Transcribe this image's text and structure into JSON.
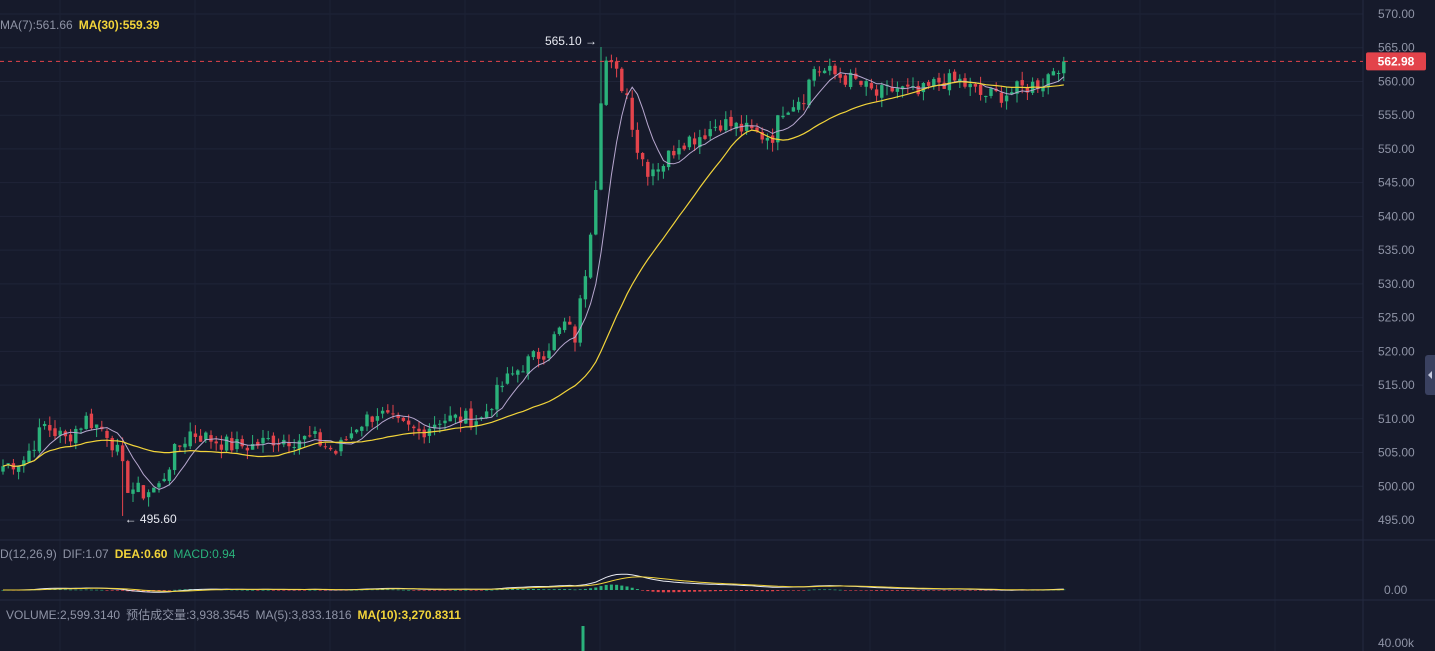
{
  "chart_data": {
    "type": "candlestick",
    "colors": {
      "up": "#2ab27b",
      "down": "#e3434b",
      "ma7": "#b7a7cf",
      "ma30": "#f2d43a",
      "background": "#161a2b"
    },
    "price_axis": {
      "ticks": [
        "570.00",
        "565.00",
        "560.00",
        "555.00",
        "550.00",
        "545.00",
        "540.00",
        "535.00",
        "530.00",
        "525.00",
        "520.00",
        "515.00",
        "510.00",
        "505.00",
        "500.00",
        "495.00"
      ],
      "range": [
        493.5,
        571
      ]
    },
    "current_price": "562.98",
    "high_label": "565.10",
    "low_label": "495.60",
    "high_value": 565.1,
    "low_value": 495.6,
    "ma7_label": "MA(7):561.66",
    "ma30_label": "MA(30):559.39",
    "anchors": [
      [
        0,
        503
      ],
      [
        4,
        504
      ],
      [
        8,
        509
      ],
      [
        12,
        507
      ],
      [
        16,
        510
      ],
      [
        20,
        508
      ],
      [
        22,
        505
      ],
      [
        24,
        500
      ],
      [
        27,
        499
      ],
      [
        30,
        500
      ],
      [
        33,
        505
      ],
      [
        36,
        508
      ],
      [
        40,
        507
      ],
      [
        44,
        506
      ],
      [
        48,
        506
      ],
      [
        52,
        507
      ],
      [
        56,
        507
      ],
      [
        60,
        507
      ],
      [
        62,
        506
      ],
      [
        64,
        505
      ],
      [
        68,
        509
      ],
      [
        72,
        511
      ],
      [
        76,
        509
      ],
      [
        80,
        508
      ],
      [
        84,
        510
      ],
      [
        88,
        510
      ],
      [
        92,
        510
      ],
      [
        96,
        515
      ],
      [
        100,
        518
      ],
      [
        104,
        520
      ],
      [
        108,
        524
      ],
      [
        110,
        522
      ],
      [
        112,
        532
      ],
      [
        114,
        545
      ],
      [
        115,
        558
      ],
      [
        116,
        563
      ],
      [
        118,
        561
      ],
      [
        120,
        558
      ],
      [
        122,
        550
      ],
      [
        124,
        547
      ],
      [
        127,
        548
      ],
      [
        130,
        551
      ],
      [
        134,
        552
      ],
      [
        138,
        554
      ],
      [
        142,
        553
      ],
      [
        146,
        552
      ],
      [
        148,
        552
      ],
      [
        150,
        556
      ],
      [
        154,
        558
      ],
      [
        156,
        562
      ],
      [
        160,
        561
      ],
      [
        164,
        560
      ],
      [
        168,
        558
      ],
      [
        172,
        559
      ],
      [
        176,
        558
      ],
      [
        180,
        560
      ],
      [
        184,
        560
      ],
      [
        188,
        558
      ],
      [
        192,
        558
      ],
      [
        196,
        559
      ],
      [
        200,
        560
      ],
      [
        202,
        562
      ],
      [
        204,
        563
      ]
    ],
    "macd": {
      "label": "D(12,26,9)",
      "dif": "DIF:1.07",
      "dea": "DEA:0.60",
      "macd": "MACD:0.94",
      "zero_tick": "0.00"
    },
    "volume": {
      "label": "VOLUME:2,599.3140",
      "forecast": "预估成交量:3,938.3545",
      "ma5": "MA(5):3,833.1816",
      "ma10": "MA(10):3,270.8311",
      "tick": "40.00k"
    }
  }
}
